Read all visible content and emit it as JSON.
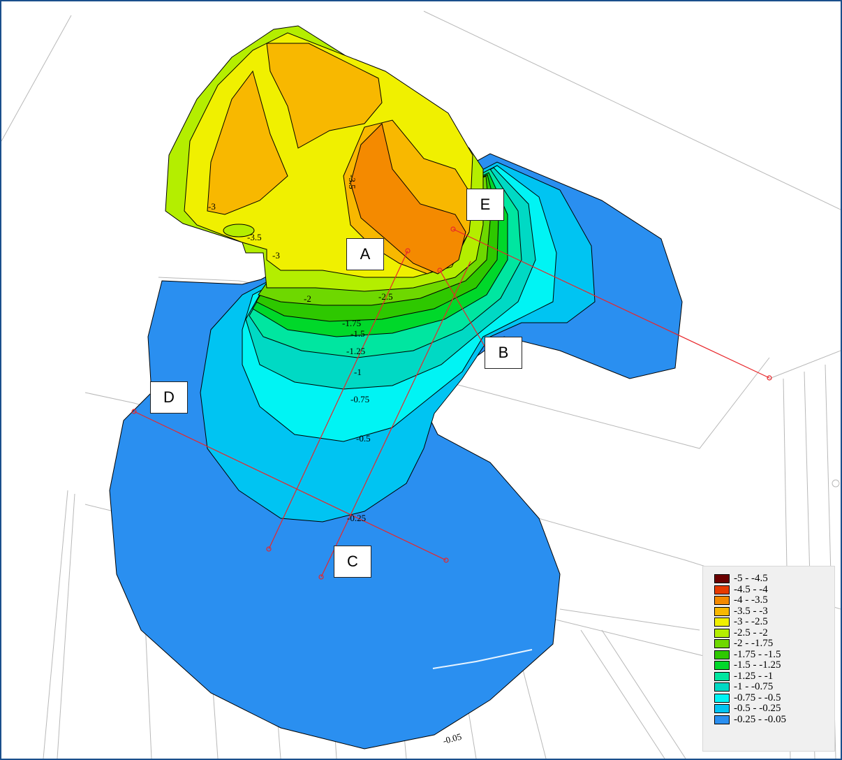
{
  "map": {
    "contour_labels": [
      "-3.5",
      "-3",
      "-3.5",
      "-3",
      "-2.5",
      "-2",
      "-1.75",
      "-1.5",
      "-1.25",
      "-1",
      "-0.75",
      "-0.5",
      "-0.25",
      "-0.05"
    ],
    "sections": [
      "A",
      "B",
      "C",
      "D",
      "E"
    ]
  },
  "legend": {
    "items": [
      {
        "label": "-5 - -4.5",
        "color": "#6b0000"
      },
      {
        "label": "-4.5 - -4",
        "color": "#e63a00"
      },
      {
        "label": "-4 - -3.5",
        "color": "#f48a00"
      },
      {
        "label": "-3.5 - -3",
        "color": "#f8b800"
      },
      {
        "label": "-3 - -2.5",
        "color": "#f0f000"
      },
      {
        "label": "-2.5 - -2",
        "color": "#b4ee00"
      },
      {
        "label": "-2 - -1.75",
        "color": "#6ed800"
      },
      {
        "label": "-1.75 - -1.5",
        "color": "#2ec800"
      },
      {
        "label": "-1.5 - -1.25",
        "color": "#00d82a"
      },
      {
        "label": "-1.25 - -1",
        "color": "#00e6a0"
      },
      {
        "label": "-1 - -0.75",
        "color": "#00d9c4"
      },
      {
        "label": "-0.75 - -0.5",
        "color": "#00f4f4"
      },
      {
        "label": "-0.5 - -0.25",
        "color": "#00c4f2"
      },
      {
        "label": "-0.25 - -0.05",
        "color": "#2a8ff0"
      }
    ]
  }
}
